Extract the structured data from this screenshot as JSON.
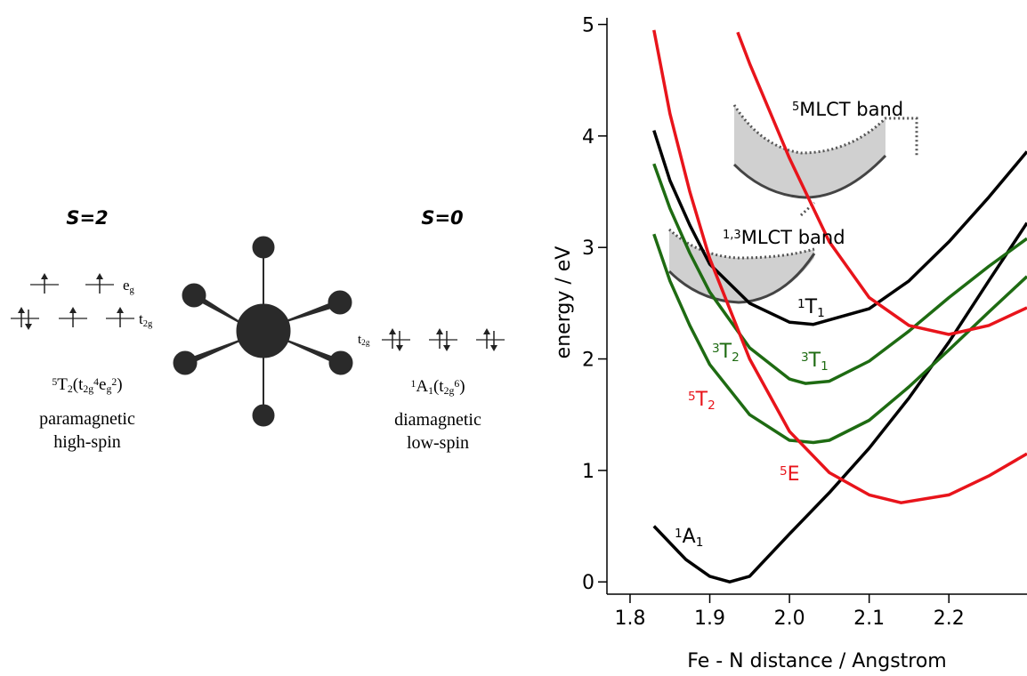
{
  "diagram": {
    "high_spin": {
      "spin": "S=2",
      "eg": [
        {
          "text": "e"
        },
        {
          "text": "g",
          "pos": "sub"
        }
      ],
      "t2g": [
        {
          "text": "t"
        },
        {
          "text": "2g",
          "pos": "sub"
        }
      ],
      "term": [
        {
          "text": "5",
          "pos": "sup"
        },
        {
          "text": "T"
        },
        {
          "text": "2",
          "pos": "sub"
        },
        {
          "text": "(t"
        },
        {
          "text": "2g",
          "pos": "sub"
        },
        {
          "text": "4",
          "pos": "sup"
        },
        {
          "text": "e"
        },
        {
          "text": "g",
          "pos": "sub"
        },
        {
          "text": "2",
          "pos": "sup"
        },
        {
          "text": ")"
        }
      ],
      "magnetism": "paramagnetic",
      "spin_state": "high-spin"
    },
    "low_spin": {
      "spin": "S=0",
      "t2g": [
        {
          "text": "t"
        },
        {
          "text": "2g",
          "pos": "sub"
        }
      ],
      "term": [
        {
          "text": "1",
          "pos": "sup"
        },
        {
          "text": "A"
        },
        {
          "text": "1",
          "pos": "sub"
        },
        {
          "text": "(t"
        },
        {
          "text": "2g",
          "pos": "sub"
        },
        {
          "text": "6",
          "pos": "sup"
        },
        {
          "text": ")"
        }
      ],
      "magnetism": "diamagnetic",
      "spin_state": "low-spin"
    }
  },
  "chart_data": {
    "type": "line",
    "x_label": "Fe - N distance / Angstrom",
    "y_label": "energy / eV",
    "xlim": [
      1.771,
      2.298
    ],
    "ylim": [
      -0.11,
      5.06
    ],
    "xticks": [
      1.8,
      1.9,
      {
        "value": 2,
        "label": "2.0"
      },
      2.1,
      2.2
    ],
    "yticks": [
      0,
      1,
      2,
      3,
      4,
      5
    ],
    "series": [
      {
        "label": [
          {
            "text": "1",
            "pos": "sup"
          },
          {
            "text": "A"
          },
          {
            "text": "1",
            "pos": "sub"
          }
        ],
        "color": "#000000",
        "x": [
          1.83,
          1.87,
          1.9,
          1.925,
          1.95,
          2.0,
          2.05,
          2.1,
          2.15,
          2.2,
          2.25,
          2.298
        ],
        "values": [
          0.5,
          0.2,
          0.05,
          0,
          0.05,
          0.43,
          0.8,
          1.2,
          1.65,
          2.15,
          2.7,
          3.22
        ]
      },
      {
        "label": [
          {
            "text": "1",
            "pos": "sup"
          },
          {
            "text": "T"
          },
          {
            "text": "1",
            "pos": "sub"
          }
        ],
        "color": "#000000",
        "x": [
          1.83,
          1.85,
          1.875,
          1.9,
          1.95,
          2.0,
          2.03,
          2.1,
          2.15,
          2.2,
          2.25,
          2.298
        ],
        "values": [
          4.05,
          3.6,
          3.2,
          2.85,
          2.5,
          2.33,
          2.31,
          2.45,
          2.7,
          3.05,
          3.45,
          3.86
        ]
      },
      {
        "label": [
          {
            "text": "3",
            "pos": "sup"
          },
          {
            "text": "T"
          },
          {
            "text": "2",
            "pos": "sub"
          }
        ],
        "color": "#1e6b12",
        "x": [
          1.83,
          1.85,
          1.875,
          1.9,
          1.95,
          2.0,
          2.02,
          2.05,
          2.1,
          2.15,
          2.2,
          2.25,
          2.298
        ],
        "values": [
          3.75,
          3.35,
          2.95,
          2.6,
          2.1,
          1.82,
          1.78,
          1.8,
          1.98,
          2.25,
          2.55,
          2.83,
          3.08
        ]
      },
      {
        "label": [
          {
            "text": "3",
            "pos": "sup"
          },
          {
            "text": "T"
          },
          {
            "text": "1",
            "pos": "sub"
          }
        ],
        "color": "#1e6b12",
        "x": [
          1.83,
          1.85,
          1.875,
          1.9,
          1.95,
          2.0,
          2.03,
          2.05,
          2.1,
          2.15,
          2.2,
          2.25,
          2.298
        ],
        "values": [
          3.12,
          2.7,
          2.3,
          1.95,
          1.5,
          1.27,
          1.25,
          1.27,
          1.45,
          1.75,
          2.08,
          2.42,
          2.74
        ]
      },
      {
        "label": [
          {
            "text": "5",
            "pos": "sup"
          },
          {
            "text": "E"
          }
        ],
        "color": "#e8141b",
        "x": [
          1.935,
          1.95,
          2.0,
          2.05,
          2.1,
          2.15,
          2.2,
          2.25,
          2.298
        ],
        "values": [
          4.93,
          4.65,
          3.8,
          3.05,
          2.55,
          2.3,
          2.22,
          2.3,
          2.46
        ]
      },
      {
        "label": [
          {
            "text": "5",
            "pos": "sup"
          },
          {
            "text": "T"
          },
          {
            "text": "2",
            "pos": "sub"
          }
        ],
        "color": "#e8141b",
        "x": [
          1.83,
          1.85,
          1.875,
          1.9,
          1.95,
          2.0,
          2.05,
          2.1,
          2.14,
          2.2,
          2.25,
          2.298
        ],
        "values": [
          4.95,
          4.2,
          3.5,
          2.9,
          2.0,
          1.35,
          0.98,
          0.78,
          0.71,
          0.78,
          0.95,
          1.15
        ]
      }
    ],
    "annotations": [
      {
        "text": [
          {
            "text": "5",
            "pos": "sup"
          },
          {
            "text": "MLCT band"
          }
        ]
      },
      {
        "text": [
          {
            "text": "1,3",
            "pos": "sup"
          },
          {
            "text": "MLCT band"
          }
        ]
      }
    ]
  }
}
